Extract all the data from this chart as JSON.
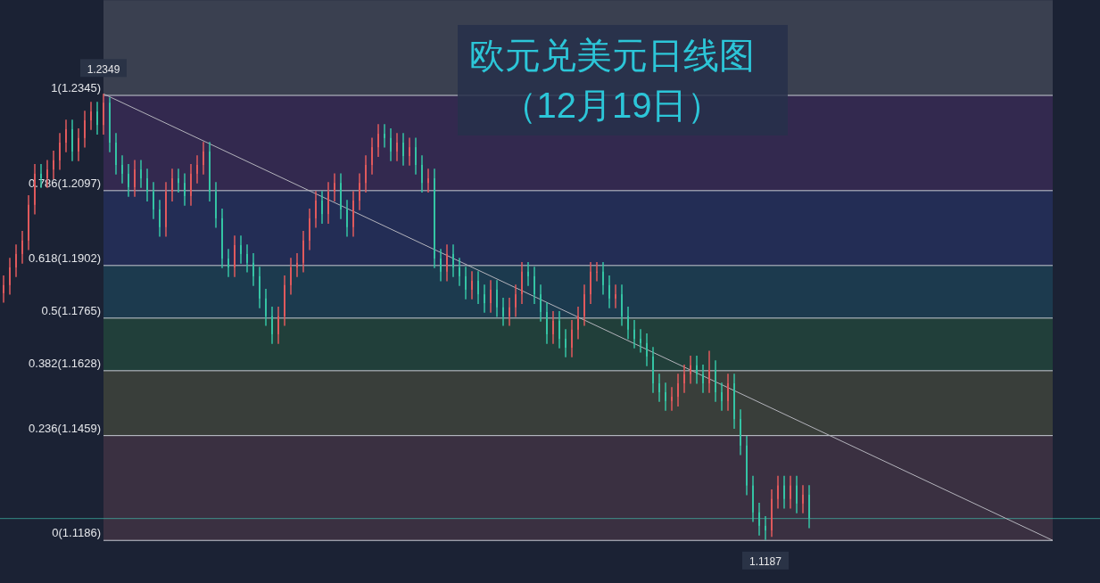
{
  "chart_data": {
    "type": "candlestick",
    "title": "欧元兑美元日线图",
    "subtitle": "（12月19日）",
    "categories": [
      null,
      null,
      null,
      null,
      null,
      null,
      null,
      null,
      null,
      null,
      null,
      null,
      null,
      null,
      null,
      null,
      null,
      null,
      null,
      null,
      null,
      null,
      null,
      null,
      null,
      null,
      null,
      null,
      null,
      null,
      null,
      null,
      null,
      null,
      null,
      null,
      null,
      null,
      null,
      null,
      null,
      null,
      null,
      null,
      null,
      null,
      null,
      null,
      null,
      null,
      null,
      null,
      null,
      null,
      null,
      null,
      null,
      null,
      null,
      null,
      null,
      null,
      null,
      null,
      null,
      null,
      null,
      null,
      null,
      null,
      null,
      null,
      null,
      null,
      null,
      null,
      null,
      null,
      null,
      null,
      null,
      null,
      null,
      null,
      null,
      null,
      null,
      null,
      null,
      null,
      null,
      null,
      null,
      null,
      null,
      null,
      null,
      null,
      null,
      null,
      null,
      null,
      null,
      null,
      null,
      null,
      null,
      null,
      null,
      null,
      null,
      null,
      null,
      null,
      null,
      null,
      null,
      null,
      null,
      null,
      null,
      null,
      null,
      null,
      null,
      null,
      null,
      null,
      null,
      null,
      null,
      null,
      null,
      null,
      null,
      null,
      null,
      null,
      null,
      null,
      null,
      null,
      null,
      null,
      null,
      null,
      null,
      null,
      null,
      null,
      null,
      null,
      null,
      null,
      null,
      null,
      null,
      null,
      null,
      null,
      null,
      null,
      null,
      null,
      null,
      null,
      null,
      null,
      null
    ],
    "ohlc": [
      [
        1.183,
        1.1876,
        1.1805,
        1.1851
      ],
      [
        1.1851,
        1.1922,
        1.1826,
        1.1897
      ],
      [
        1.1897,
        1.1957,
        1.1872,
        1.1932
      ],
      [
        1.1932,
        1.1992,
        1.1907,
        1.1967
      ],
      [
        1.1967,
        1.2085,
        1.1942,
        1.206
      ],
      [
        1.206,
        1.2166,
        1.2035,
        1.2141
      ],
      [
        1.2141,
        1.2166,
        1.2104,
        1.2129
      ],
      [
        1.2129,
        1.2177,
        1.2104,
        1.2152
      ],
      [
        1.2152,
        1.2201,
        1.2127,
        1.2176
      ],
      [
        1.2176,
        1.2247,
        1.2151,
        1.2222
      ],
      [
        1.2222,
        1.2282,
        1.2197,
        1.2257
      ],
      [
        1.2257,
        1.2282,
        1.2174,
        1.2199
      ],
      [
        1.2199,
        1.2259,
        1.2174,
        1.2234
      ],
      [
        1.2234,
        1.2305,
        1.2209,
        1.228
      ],
      [
        1.228,
        1.2328,
        1.2255,
        1.2303
      ],
      [
        1.2303,
        1.2328,
        1.2243,
        1.2268
      ],
      [
        1.2268,
        1.2349,
        1.2243,
        1.2326
      ],
      [
        1.2326,
        1.234,
        1.2197,
        1.2222
      ],
      [
        1.2222,
        1.2247,
        1.2139,
        1.2164
      ],
      [
        1.2164,
        1.2189,
        1.2116,
        1.2141
      ],
      [
        1.2141,
        1.2166,
        1.2081,
        1.2106
      ],
      [
        1.2106,
        1.2177,
        1.2081,
        1.2152
      ],
      [
        1.2152,
        1.2177,
        1.2104,
        1.2129
      ],
      [
        1.2129,
        1.2154,
        1.2069,
        1.2094
      ],
      [
        1.2094,
        1.2119,
        1.2023,
        1.2048
      ],
      [
        1.2048,
        1.2073,
        1.1977,
        1.2002
      ],
      [
        1.2002,
        1.2119,
        1.1977,
        1.2094
      ],
      [
        1.2094,
        1.2154,
        1.2069,
        1.2129
      ],
      [
        1.2129,
        1.2154,
        1.2092,
        1.2117
      ],
      [
        1.2117,
        1.2142,
        1.2058,
        1.2083
      ],
      [
        1.2083,
        1.2166,
        1.2058,
        1.2141
      ],
      [
        1.2141,
        1.2189,
        1.2116,
        1.2164
      ],
      [
        1.2164,
        1.2224,
        1.2139,
        1.2199
      ],
      [
        1.2199,
        1.2224,
        1.2069,
        1.2094
      ],
      [
        1.2094,
        1.2119,
        1.2,
        1.2025
      ],
      [
        1.2025,
        1.205,
        1.1895,
        1.192
      ],
      [
        1.192,
        1.1945,
        1.1872,
        1.1897
      ],
      [
        1.1897,
        1.198,
        1.1872,
        1.1955
      ],
      [
        1.1955,
        1.198,
        1.1907,
        1.1932
      ],
      [
        1.1932,
        1.1957,
        1.1884,
        1.1909
      ],
      [
        1.1909,
        1.1934,
        1.1849,
        1.1874
      ],
      [
        1.1874,
        1.1899,
        1.1791,
        1.1816
      ],
      [
        1.1816,
        1.1841,
        1.1745,
        1.177
      ],
      [
        1.177,
        1.1795,
        1.1698,
        1.1723
      ],
      [
        1.1723,
        1.1795,
        1.1698,
        1.177
      ],
      [
        1.177,
        1.1876,
        1.1745,
        1.1851
      ],
      [
        1.1851,
        1.1922,
        1.1826,
        1.1897
      ],
      [
        1.1897,
        1.1934,
        1.1872,
        1.1909
      ],
      [
        1.1909,
        1.1992,
        1.1884,
        1.1967
      ],
      [
        1.1967,
        1.205,
        1.1942,
        1.2025
      ],
      [
        1.2025,
        1.2096,
        1.2,
        1.2071
      ],
      [
        1.2071,
        1.2096,
        1.2011,
        1.2036
      ],
      [
        1.2036,
        1.2119,
        1.2011,
        1.2094
      ],
      [
        1.2094,
        1.2142,
        1.2069,
        1.2117
      ],
      [
        1.2117,
        1.2142,
        1.2023,
        1.2048
      ],
      [
        1.2048,
        1.2073,
        1.1977,
        1.2002
      ],
      [
        1.2002,
        1.2096,
        1.1977,
        1.2071
      ],
      [
        1.2071,
        1.2142,
        1.2046,
        1.2117
      ],
      [
        1.2117,
        1.2189,
        1.2092,
        1.2164
      ],
      [
        1.2164,
        1.2235,
        1.2139,
        1.221
      ],
      [
        1.221,
        1.227,
        1.2185,
        1.2245
      ],
      [
        1.2245,
        1.227,
        1.2209,
        1.2234
      ],
      [
        1.2234,
        1.2259,
        1.2174,
        1.2199
      ],
      [
        1.2199,
        1.2247,
        1.2174,
        1.2222
      ],
      [
        1.2222,
        1.2247,
        1.2162,
        1.2187
      ],
      [
        1.2187,
        1.2235,
        1.2162,
        1.221
      ],
      [
        1.221,
        1.2235,
        1.2139,
        1.2164
      ],
      [
        1.2164,
        1.2189,
        1.2092,
        1.2117
      ],
      [
        1.2117,
        1.2154,
        1.2092,
        1.2129
      ],
      [
        1.2129,
        1.2154,
        1.1895,
        1.192
      ],
      [
        1.192,
        1.1945,
        1.1861,
        1.1886
      ],
      [
        1.1886,
        1.1957,
        1.1861,
        1.1932
      ],
      [
        1.1932,
        1.1957,
        1.1872,
        1.1897
      ],
      [
        1.1897,
        1.1922,
        1.1849,
        1.1874
      ],
      [
        1.1874,
        1.1899,
        1.1814,
        1.1839
      ],
      [
        1.1839,
        1.1887,
        1.1814,
        1.1862
      ],
      [
        1.1862,
        1.1887,
        1.1802,
        1.1827
      ],
      [
        1.1827,
        1.1852,
        1.1779,
        1.1804
      ],
      [
        1.1804,
        1.1864,
        1.1779,
        1.1839
      ],
      [
        1.1839,
        1.1864,
        1.1768,
        1.1793
      ],
      [
        1.1793,
        1.1818,
        1.1745,
        1.177
      ],
      [
        1.177,
        1.1818,
        1.1745,
        1.1793
      ],
      [
        1.1793,
        1.1852,
        1.1768,
        1.1827
      ],
      [
        1.1827,
        1.1911,
        1.1802,
        1.1886
      ],
      [
        1.1886,
        1.1911,
        1.1849,
        1.1874
      ],
      [
        1.1874,
        1.1899,
        1.1802,
        1.1827
      ],
      [
        1.1827,
        1.1852,
        1.1756,
        1.1781
      ],
      [
        1.1781,
        1.1806,
        1.1698,
        1.1723
      ],
      [
        1.1723,
        1.1783,
        1.1698,
        1.1758
      ],
      [
        1.1758,
        1.1783,
        1.1686,
        1.1711
      ],
      [
        1.1711,
        1.1736,
        1.1663,
        1.1688
      ],
      [
        1.1688,
        1.176,
        1.1663,
        1.1735
      ],
      [
        1.1735,
        1.1795,
        1.171,
        1.177
      ],
      [
        1.177,
        1.1852,
        1.1745,
        1.1827
      ],
      [
        1.1827,
        1.1911,
        1.1802,
        1.1886
      ],
      [
        1.1886,
        1.1911,
        1.1861,
        1.1886
      ],
      [
        1.1886,
        1.1911,
        1.1826,
        1.1851
      ],
      [
        1.1851,
        1.1876,
        1.1791,
        1.1816
      ],
      [
        1.1816,
        1.1852,
        1.1791,
        1.1827
      ],
      [
        1.1827,
        1.1852,
        1.1745,
        1.177
      ],
      [
        1.177,
        1.1795,
        1.171,
        1.1735
      ],
      [
        1.1735,
        1.176,
        1.1686,
        1.1711
      ],
      [
        1.1711,
        1.1736,
        1.1675,
        1.17
      ],
      [
        1.17,
        1.1725,
        1.164,
        1.1665
      ],
      [
        1.1665,
        1.169,
        1.157,
        1.1595
      ],
      [
        1.1595,
        1.162,
        1.1547,
        1.1572
      ],
      [
        1.1572,
        1.1597,
        1.1524,
        1.1549
      ],
      [
        1.1549,
        1.1585,
        1.1524,
        1.156
      ],
      [
        1.156,
        1.162,
        1.1535,
        1.1595
      ],
      [
        1.1595,
        1.1644,
        1.157,
        1.1619
      ],
      [
        1.1619,
        1.1667,
        1.1594,
        1.1642
      ],
      [
        1.1642,
        1.1667,
        1.1594,
        1.1619
      ],
      [
        1.1619,
        1.1644,
        1.157,
        1.1595
      ],
      [
        1.1595,
        1.168,
        1.157,
        1.163
      ],
      [
        1.163,
        1.1655,
        1.1547,
        1.1572
      ],
      [
        1.1572,
        1.1597,
        1.1524,
        1.1549
      ],
      [
        1.1549,
        1.162,
        1.1524,
        1.1595
      ],
      [
        1.1595,
        1.162,
        1.1477,
        1.1502
      ],
      [
        1.1502,
        1.1527,
        1.1408,
        1.1433
      ],
      [
        1.1433,
        1.1458,
        1.1304,
        1.1329
      ],
      [
        1.1329,
        1.1354,
        1.1234,
        1.1259
      ],
      [
        1.1259,
        1.1284,
        1.1199,
        1.1224
      ],
      [
        1.1224,
        1.1249,
        1.1187,
        1.1212
      ],
      [
        1.1212,
        1.1319,
        1.1195,
        1.1294
      ],
      [
        1.1294,
        1.1354,
        1.1269,
        1.1329
      ],
      [
        1.1329,
        1.1354,
        1.1269,
        1.1294
      ],
      [
        1.1294,
        1.1354,
        1.1269,
        1.1329
      ],
      [
        1.1329,
        1.1354,
        1.1257,
        1.1282
      ],
      [
        1.1282,
        1.133,
        1.1257,
        1.1305
      ],
      [
        1.1305,
        1.133,
        1.1218,
        1.1243
      ],
      null,
      null,
      null,
      null,
      null,
      null,
      null,
      null,
      null,
      null,
      null,
      null,
      null,
      null,
      null,
      null,
      null,
      null,
      null,
      null,
      null,
      null,
      null,
      null,
      null,
      null,
      null,
      null,
      null,
      null,
      null,
      null,
      null,
      null,
      null,
      null,
      null,
      null,
      null
    ],
    "colors": [
      "#e05a5c",
      "#e05a5c",
      "#e05a5c",
      "#e05a5c",
      "#e05a5c",
      "#e05a5c",
      "#35c4a4",
      "#e05a5c",
      "#e05a5c",
      "#e05a5c",
      "#e05a5c",
      "#35c4a4",
      "#e05a5c",
      "#e05a5c",
      "#e05a5c",
      "#35c4a4",
      "#e05a5c",
      "#35c4a4",
      "#35c4a4",
      "#35c4a4",
      "#35c4a4",
      "#e05a5c",
      "#35c4a4",
      "#35c4a4",
      "#35c4a4",
      "#35c4a4",
      "#e05a5c",
      "#e05a5c",
      "#35c4a4",
      "#35c4a4",
      "#e05a5c",
      "#e05a5c",
      "#e05a5c",
      "#35c4a4",
      "#35c4a4",
      "#35c4a4",
      "#35c4a4",
      "#e05a5c",
      "#35c4a4",
      "#35c4a4",
      "#35c4a4",
      "#35c4a4",
      "#35c4a4",
      "#35c4a4",
      "#e05a5c",
      "#e05a5c",
      "#e05a5c",
      "#e05a5c",
      "#e05a5c",
      "#e05a5c",
      "#e05a5c",
      "#35c4a4",
      "#e05a5c",
      "#e05a5c",
      "#35c4a4",
      "#35c4a4",
      "#e05a5c",
      "#e05a5c",
      "#e05a5c",
      "#e05a5c",
      "#e05a5c",
      "#35c4a4",
      "#35c4a4",
      "#e05a5c",
      "#35c4a4",
      "#e05a5c",
      "#35c4a4",
      "#35c4a4",
      "#e05a5c",
      "#35c4a4",
      "#35c4a4",
      "#e05a5c",
      "#35c4a4",
      "#35c4a4",
      "#35c4a4",
      "#e05a5c",
      "#35c4a4",
      "#35c4a4",
      "#e05a5c",
      "#35c4a4",
      "#35c4a4",
      "#e05a5c",
      "#e05a5c",
      "#e05a5c",
      "#35c4a4",
      "#35c4a4",
      "#35c4a4",
      "#35c4a4",
      "#e05a5c",
      "#35c4a4",
      "#35c4a4",
      "#e05a5c",
      "#e05a5c",
      "#e05a5c",
      "#e05a5c",
      "#e05a5c",
      "#35c4a4",
      "#35c4a4",
      "#e05a5c",
      "#35c4a4",
      "#35c4a4",
      "#35c4a4",
      "#35c4a4",
      "#35c4a4",
      "#35c4a4",
      "#35c4a4",
      "#35c4a4",
      "#e05a5c",
      "#e05a5c",
      "#e05a5c",
      "#e05a5c",
      "#35c4a4",
      "#35c4a4",
      "#e05a5c",
      "#35c4a4",
      "#35c4a4",
      "#e05a5c",
      "#35c4a4",
      "#35c4a4",
      "#35c4a4",
      "#35c4a4",
      "#35c4a4",
      "#35c4a4",
      "#e05a5c",
      "#e05a5c",
      "#35c4a4",
      "#e05a5c",
      "#35c4a4",
      "#e05a5c",
      "#35c4a4",
      null,
      null,
      null,
      null,
      null,
      null,
      null,
      null,
      null,
      null,
      null,
      null,
      null,
      null,
      null,
      null,
      null,
      null,
      null,
      null,
      null,
      null,
      null,
      null,
      null,
      null,
      null,
      null,
      null,
      null,
      null,
      null,
      null,
      null,
      null,
      null,
      null,
      null,
      null
    ],
    "series": [
      {
        "type": "line",
        "color": "#b4b4bc",
        "values": [
          null,
          null,
          null,
          null,
          null,
          null,
          null,
          null,
          null,
          null,
          null,
          null,
          null,
          null,
          null,
          null,
          1.2349,
          null,
          null,
          null,
          null,
          null,
          null,
          null,
          null,
          null,
          null,
          null,
          null,
          null,
          null,
          null,
          null,
          null,
          null,
          null,
          null,
          null,
          null,
          null,
          null,
          null,
          null,
          null,
          null,
          null,
          null,
          null,
          null,
          null,
          null,
          null,
          null,
          null,
          null,
          null,
          null,
          null,
          null,
          null,
          null,
          null,
          null,
          null,
          null,
          null,
          null,
          null,
          null,
          null,
          null,
          null,
          null,
          null,
          null,
          null,
          null,
          null,
          null,
          null,
          null,
          null,
          null,
          null,
          null,
          null,
          null,
          null,
          null,
          null,
          null,
          null,
          null,
          null,
          null,
          null,
          null,
          null,
          null,
          null,
          null,
          null,
          null,
          null,
          null,
          null,
          null,
          null,
          null,
          null,
          null,
          null,
          null,
          null,
          null,
          null,
          null,
          null,
          null,
          null,
          null,
          null,
          null,
          null,
          null,
          null,
          null,
          null,
          null,
          null,
          null,
          null,
          null,
          null,
          null,
          null,
          null,
          null,
          null,
          null,
          null,
          null,
          null,
          null,
          null,
          null,
          null,
          null,
          null,
          null,
          null,
          null,
          null,
          null,
          null,
          null,
          null,
          null,
          null,
          null,
          null,
          null,
          null,
          null,
          null,
          null,
          null,
          null,
          1.1186
        ]
      }
    ],
    "bands": [
      {
        "axis": "y",
        "from": 1.2345,
        "to": 1.2593,
        "color": "#3a4050"
      },
      {
        "axis": "y",
        "from": 1.2097,
        "to": 1.2345,
        "color": "#33294f"
      },
      {
        "axis": "y",
        "from": 1.1902,
        "to": 1.2097,
        "color": "#232d55"
      },
      {
        "axis": "y",
        "from": 1.1765,
        "to": 1.1902,
        "color": "#1c3a4e"
      },
      {
        "axis": "y",
        "from": 1.1628,
        "to": 1.1765,
        "color": "#213f3a"
      },
      {
        "axis": "y",
        "from": 1.1459,
        "to": 1.1628,
        "color": "#393e3a"
      },
      {
        "axis": "y",
        "from": 1.1186,
        "to": 1.1459,
        "color": "#3a3041"
      }
    ],
    "ref_lines": [
      {
        "axis": "y",
        "value": 1.2345,
        "label": "1(1.2345)",
        "color": "#c8ccd4"
      },
      {
        "axis": "y",
        "value": 1.2097,
        "label": "0.786(1.2097)",
        "color": "#c8ccd4"
      },
      {
        "axis": "y",
        "value": 1.1902,
        "label": "0.618(1.1902)",
        "color": "#c8ccd4"
      },
      {
        "axis": "y",
        "value": 1.1765,
        "label": "0.5(1.1765)",
        "color": "#c8ccd4"
      },
      {
        "axis": "y",
        "value": 1.1628,
        "label": "0.382(1.1628)",
        "color": "#c8ccd4"
      },
      {
        "axis": "y",
        "value": 1.1459,
        "label": "0.236(1.1459)",
        "color": "#c8ccd4"
      },
      {
        "axis": "y",
        "value": 1.1186,
        "label": "0(1.1186)",
        "color": "#c8ccd4"
      },
      {
        "axis": "y",
        "value": 1.1243,
        "color": "#3fb8a8"
      }
    ],
    "annotations": [
      {
        "text": "1.2349",
        "y": 1.2349
      },
      {
        "text": "1.1187",
        "y": 1.1187
      }
    ]
  }
}
